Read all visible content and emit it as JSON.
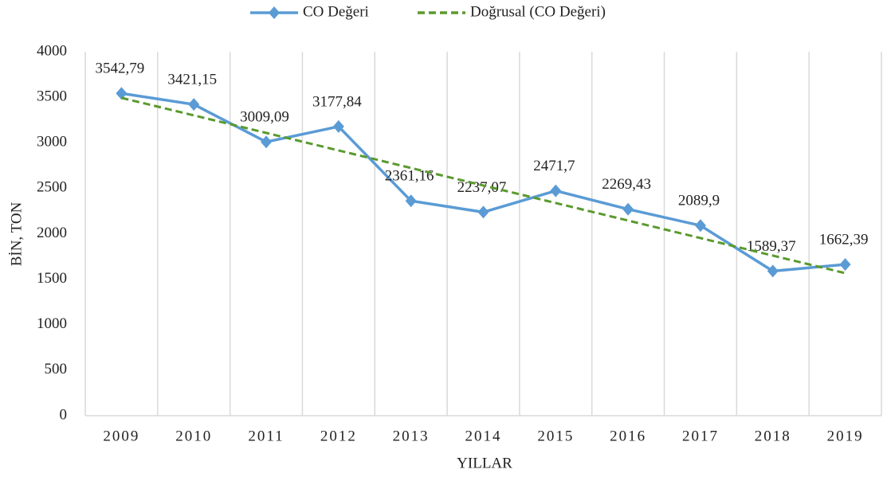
{
  "chart_data": {
    "type": "line",
    "x_label": "YILLAR",
    "y_label": "BİN, TON",
    "categories": [
      "2009",
      "2010",
      "2011",
      "2012",
      "2013",
      "2014",
      "2015",
      "2016",
      "2017",
      "2018",
      "2019"
    ],
    "series": [
      {
        "name": "CO Değeri",
        "color": "#5b9bd5",
        "values": [
          3542.79,
          3421.15,
          3009.09,
          3177.84,
          2361.16,
          2237.07,
          2471.7,
          2269.43,
          2089.9,
          1589.37,
          1662.39
        ],
        "value_labels": [
          "3542,79",
          "3421,15",
          "3009,09",
          "3177,84",
          "2361,16",
          "2237,07",
          "2471,7",
          "2269,43",
          "2089,9",
          "1589,37",
          "1662,39"
        ]
      },
      {
        "name": "Doğrusal (CO Değeri)",
        "color": "#5a9a2e",
        "dashed": true,
        "values": [
          3493.5,
          3300.8,
          3108.2,
          2915.5,
          2722.8,
          2530.2,
          2337.5,
          2144.8,
          1952.2,
          1759.5,
          1566.8
        ]
      }
    ],
    "ylim": [
      0,
      4000
    ],
    "yticks": [
      0,
      500,
      1000,
      1500,
      2000,
      2500,
      3000,
      3500,
      4000
    ],
    "grid": "vertical",
    "legend": "top"
  }
}
